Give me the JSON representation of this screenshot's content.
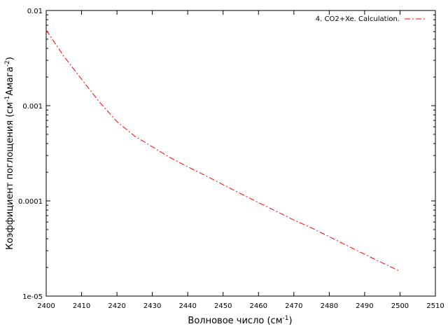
{
  "chart_data": {
    "type": "line",
    "xlabel": {
      "text": "Волновое число (см",
      "sup": "-1",
      "close": ")"
    },
    "ylabel": {
      "p1": "Коэффициент поглощения (см",
      "s1": "-1",
      "p2": "Амага",
      "s2": "-2",
      "p3": ")"
    },
    "xlim": [
      2400,
      2510
    ],
    "ylim": [
      1e-05,
      0.01
    ],
    "yscale": "log",
    "grid": false,
    "legend_position": "top-right",
    "x_ticks": [
      2400,
      2410,
      2420,
      2430,
      2440,
      2450,
      2460,
      2470,
      2480,
      2490,
      2500,
      2510
    ],
    "x_tick_labels": [
      "2400",
      "2410",
      "2420",
      "2430",
      "2440",
      "2450",
      "2460",
      "2470",
      "2480",
      "2490",
      "2500",
      "2510"
    ],
    "y_ticks": [
      1e-05,
      0.0001,
      0.001,
      0.01
    ],
    "y_tick_labels": [
      "1e-05",
      "0.0001",
      "0.001",
      "0.01"
    ],
    "series": [
      {
        "name": "4. CO2+Xe. Calculation.",
        "color": "#ff0000",
        "line_style": "dash-dot",
        "x": [
          2400,
          2405,
          2410,
          2415,
          2420,
          2425,
          2430,
          2435,
          2440,
          2445,
          2450,
          2455,
          2460,
          2465,
          2470,
          2475,
          2480,
          2485,
          2490,
          2495,
          2500
        ],
        "y": [
          0.0062,
          0.0033,
          0.0019,
          0.0011,
          0.00068,
          0.00048,
          0.00037,
          0.000285,
          0.000228,
          0.000185,
          0.000148,
          0.000119,
          9.6e-05,
          7.8e-05,
          6.3e-05,
          5.2e-05,
          4.2e-05,
          3.4e-05,
          2.75e-05,
          2.23e-05,
          1.82e-05
        ]
      }
    ]
  }
}
